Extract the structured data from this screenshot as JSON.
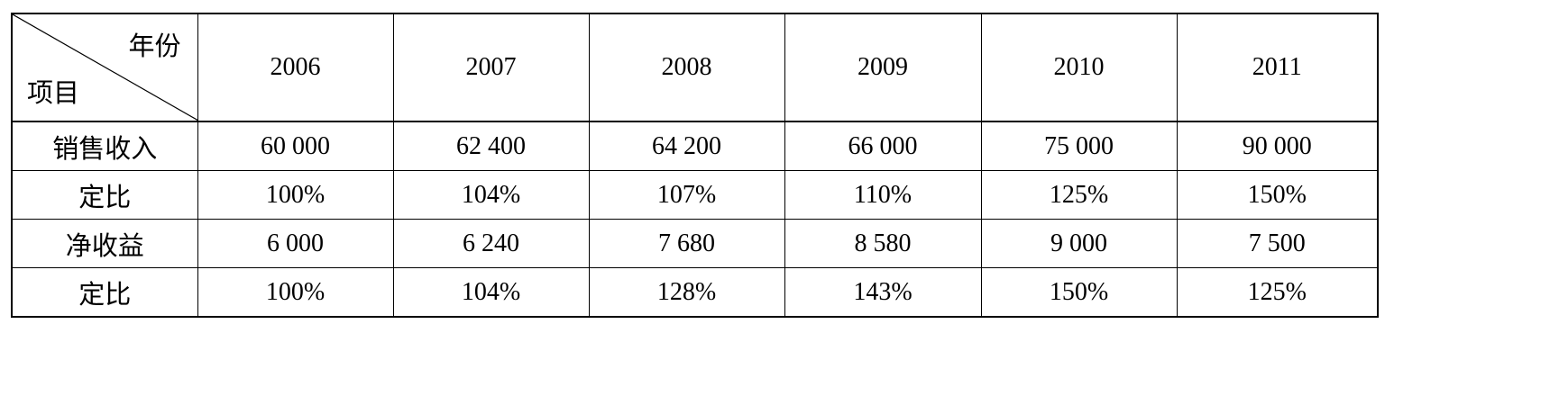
{
  "table": {
    "corner": {
      "column_label": "年份",
      "row_label": "项目"
    },
    "years": [
      "2006",
      "2007",
      "2008",
      "2009",
      "2010",
      "2011"
    ],
    "rows": [
      {
        "label": "销售收入",
        "values": [
          "60 000",
          "62 400",
          "64 200",
          "66 000",
          "75 000",
          "90 000"
        ]
      },
      {
        "label": "定比",
        "values": [
          "100%",
          "104%",
          "107%",
          "110%",
          "125%",
          "150%"
        ]
      },
      {
        "label": "净收益",
        "values": [
          "6 000",
          "6 240",
          "7 680",
          "8 580",
          "9 000",
          "7 500"
        ]
      },
      {
        "label": "定比",
        "values": [
          "100%",
          "104%",
          "128%",
          "143%",
          "150%",
          "125%"
        ]
      }
    ]
  }
}
